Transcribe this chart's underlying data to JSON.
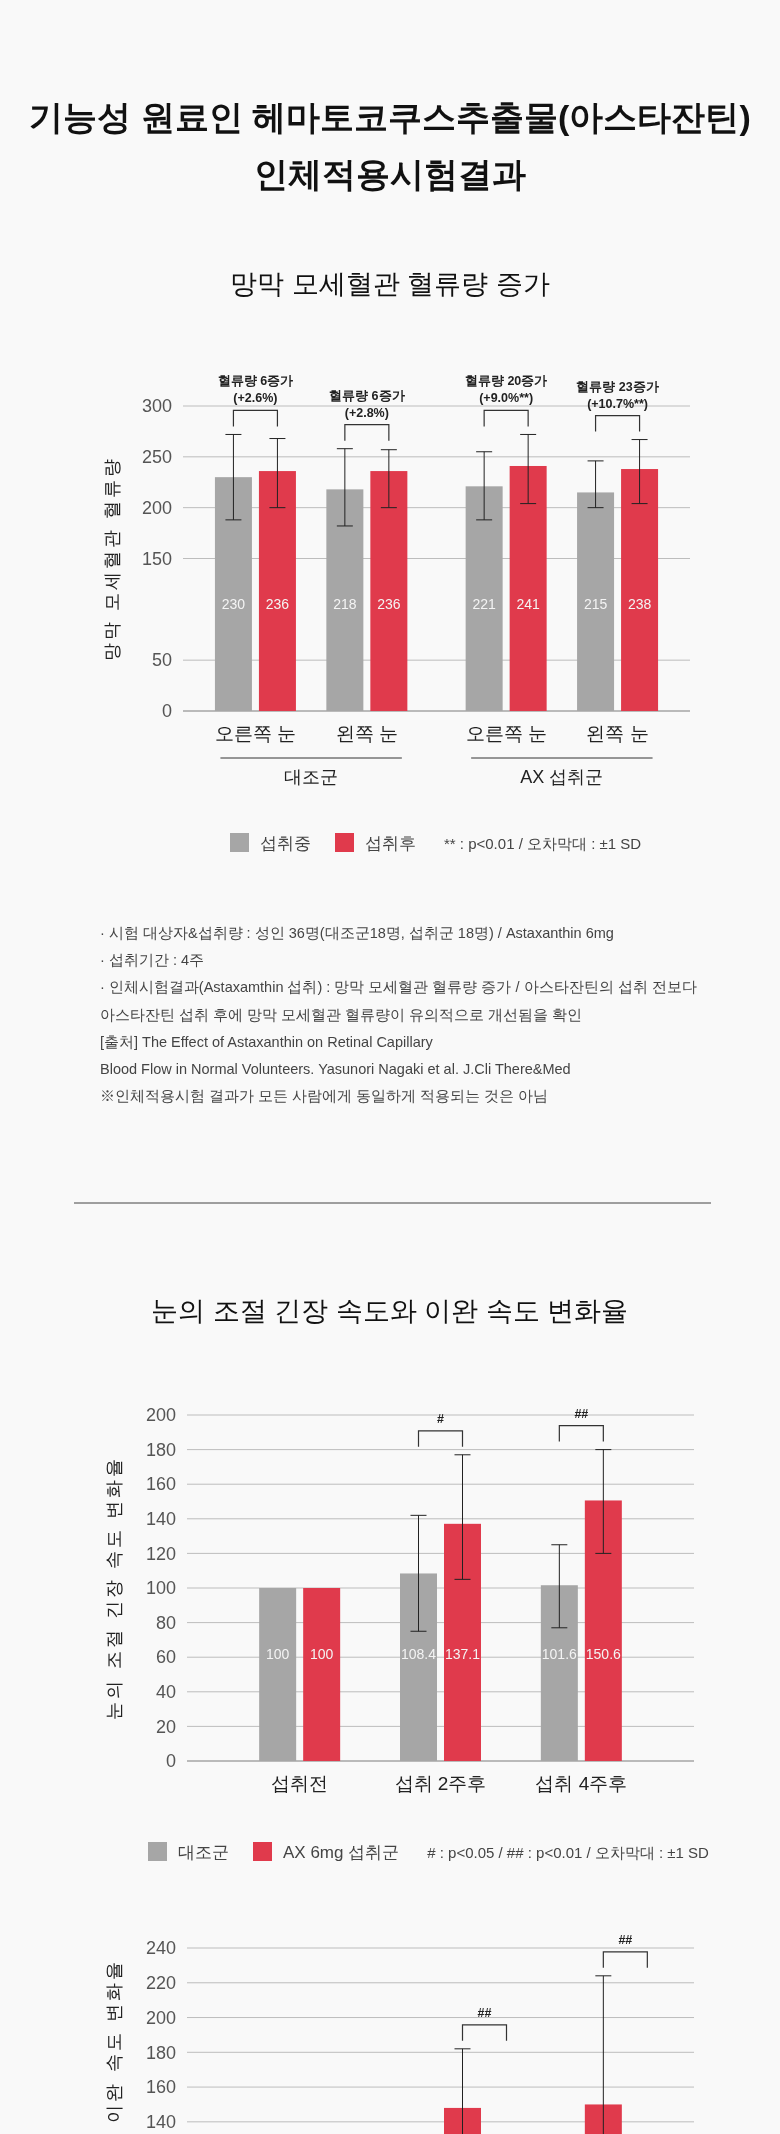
{
  "chart_data": [
    {
      "type": "bar",
      "title": "기능성 원료인 헤마토코쿠스추출물(아스타잔틴)\n인체적용시험결과",
      "subtitle": "망막 모세혈관 혈류량 증가",
      "ylabel": "망막 모세혈관 혈류량",
      "categories": [
        "오른쪽 눈",
        "왼쪽 눈",
        "오른쪽 눈",
        "왼쪽 눈"
      ],
      "series": [
        {
          "name": "섭취중",
          "color": "#a6a6a6",
          "values": [
            230,
            218,
            221,
            215
          ],
          "errors": [
            [
              188,
              272
            ],
            [
              182,
              258
            ],
            [
              188,
              255
            ],
            [
              200,
              246
            ]
          ]
        },
        {
          "name": "섭취후",
          "color": "#e03a4c",
          "values": [
            236,
            236,
            241,
            238
          ],
          "errors": [
            [
              200,
              268
            ],
            [
              200,
              257
            ],
            [
              204,
              272
            ],
            [
              204,
              267
            ]
          ]
        }
      ],
      "ylim": [
        0,
        300
      ],
      "yticks": [
        0,
        50,
        150,
        200,
        250,
        300
      ],
      "grid": "y",
      "legend": "bottom",
      "data_labels": true,
      "annotations": [
        "혈류량 6증가\n(+2.6%)",
        "혈류량 6증가\n(+2.8%)",
        "혈류량 20증가\n(+9.0%**)",
        "혈류량 23증가\n(+10.7%**)",
        "대조군",
        "AX 섭취군",
        "** : p<0.01 / 오차막대 : ±1 SD",
        "· 시험 대상자&섭취량 : 성인 36명(대조군18명, 섭취군 18명) / Astaxanthin 6mg",
        "· 섭취기간 : 4주",
        "· 인체시험결과(Astaxamthin 섭취) : 망막 모세혈관 혈류량 증가 / 아스타잔틴의 섭취 전보다",
        "아스타잔틴 섭취 후에 망막 모세혈관 혈류량이 유의적으로 개선됨을 확인",
        "[출처] The Effect of Astaxanthin on Retinal Capillary",
        "Blood Flow in Normal Volunteers. Yasunori Nagaki et al. J.Cli There&Med",
        "※인체적용시험 결과가 모든 사람에게 동일하게 적용되는 것은 아님"
      ]
    },
    {
      "type": "bar",
      "title": "눈의 조절 긴장 속도와 이완 속도 변화율",
      "ylabel": "눈의 조절 긴장 속도 변화율",
      "categories": [
        "섭취전",
        "섭취 2주후",
        "섭취 4주후"
      ],
      "series": [
        {
          "name": "대조군",
          "color": "#a6a6a6",
          "values": [
            100,
            108.4,
            101.6
          ],
          "errors": [
            null,
            [
              75,
              142
            ],
            [
              77,
              125
            ]
          ]
        },
        {
          "name": "AX 6mg 섭취군",
          "color": "#e03a4c",
          "values": [
            100,
            137.1,
            150.6
          ],
          "errors": [
            null,
            [
              105,
              177
            ],
            [
              120,
              180
            ]
          ]
        }
      ],
      "ylim": [
        0,
        200
      ],
      "yticks": [
        0,
        20,
        40,
        60,
        80,
        100,
        120,
        140,
        160,
        180,
        200
      ],
      "grid": "y",
      "legend": "bottom",
      "data_labels": true,
      "annotations": [
        "#",
        "##",
        "# : p<0.05 / ## : p<0.01 / 오차막대 : ±1 SD"
      ]
    },
    {
      "type": "bar",
      "ylabel": "이완 속도 변화율",
      "categories": [
        null,
        null,
        null
      ],
      "series": [
        {
          "color": "#e03a4c",
          "values": [
            null,
            148,
            150
          ],
          "errors": [
            null,
            34,
            74
          ]
        }
      ],
      "ylim": [
        133,
        240
      ],
      "yticks": [
        140,
        160,
        180,
        200,
        220,
        240
      ],
      "grid": "y",
      "annotations": [
        "##",
        "##"
      ]
    }
  ]
}
